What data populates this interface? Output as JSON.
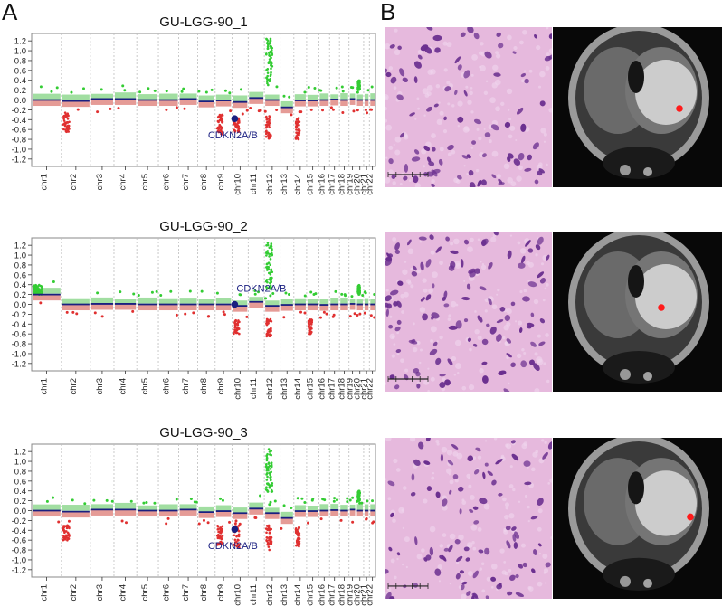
{
  "panel_labels": {
    "a": "A",
    "b": "B"
  },
  "colors": {
    "gain": "#90d890",
    "gain_dot": "#33cc33",
    "loss": "#e08a84",
    "loss_dot": "#e03030",
    "segment": "#1a1f80",
    "gene": "#1a1f80",
    "baseline_band": "#c8c8c8",
    "mri_lesion": "#ff1a1a",
    "he_pink": "#e6b9dd",
    "he_nucleus": "#6a2f8f"
  },
  "chart_data": [
    {
      "type": "scatter",
      "title": "GU-LGG-90_1",
      "xlabel": "",
      "ylabel": "",
      "ylim": [
        -1.35,
        1.35
      ],
      "yticks": [
        1.2,
        1.0,
        0.8,
        0.6,
        0.4,
        0.2,
        0.0,
        -0.2,
        -0.4,
        -0.6,
        -0.8,
        -1.0,
        -1.2
      ],
      "yticklabels": [
        "1.2",
        "1.0",
        "0.8",
        "0.6",
        "0.4",
        "0.2",
        "0.0",
        "-0.2",
        "-0.4",
        "-0.6",
        "-0.8",
        "-1.0",
        "-1.2"
      ],
      "categories": [
        "chr1",
        "chr2",
        "chr3",
        "chr4",
        "chr5",
        "chr6",
        "chr7",
        "chr8",
        "chr9",
        "chr10",
        "chr11",
        "chr12",
        "chr13",
        "chr14",
        "chr15",
        "chr16",
        "chr17",
        "chr18",
        "chr19",
        "chr20",
        "chr21",
        "chr22"
      ],
      "segments": [
        0,
        -0.02,
        0.02,
        0.02,
        0.0,
        0.0,
        0.02,
        -0.03,
        -0.01,
        -0.04,
        0.04,
        0.0,
        -0.15,
        -0.01,
        -0.01,
        0.0,
        0.01,
        0.0,
        0.02,
        0.0,
        0.0,
        0.0
      ],
      "gains": [
        {
          "chr": 11,
          "ylow": 0.3,
          "yhigh": 1.25
        },
        {
          "chr": 19,
          "ylow": 0.2,
          "yhigh": 0.4
        }
      ],
      "losses": [
        {
          "chr": 1,
          "ylow": -0.65,
          "yhigh": -0.25
        },
        {
          "chr": 8,
          "ylow": -0.7,
          "yhigh": -0.3
        },
        {
          "chr": 9,
          "ylow": -0.65,
          "yhigh": -0.35
        },
        {
          "chr": 11,
          "ylow": -0.8,
          "yhigh": -0.3
        },
        {
          "chr": 13,
          "ylow": -0.8,
          "yhigh": -0.35
        }
      ],
      "annotation": {
        "label": "CDKN2A/B",
        "chr": 8,
        "y": -0.38
      }
    },
    {
      "type": "scatter",
      "title": "GU-LGG-90_2",
      "xlabel": "",
      "ylabel": "",
      "ylim": [
        -1.35,
        1.35
      ],
      "yticks": [
        1.2,
        1.0,
        0.8,
        0.6,
        0.4,
        0.2,
        0.0,
        -0.2,
        -0.4,
        -0.6,
        -0.8,
        -1.0,
        -1.2
      ],
      "yticklabels": [
        "1.2",
        "1.0",
        "0.8",
        "0.6",
        "0.4",
        "0.2",
        "0.0",
        "-0.2",
        "-0.4",
        "-0.6",
        "-0.8",
        "-1.0",
        "-1.2"
      ],
      "categories": [
        "chr1",
        "chr2",
        "chr3",
        "chr4",
        "chr5",
        "chr6",
        "chr7",
        "chr8",
        "chr9",
        "chr10",
        "chr11",
        "chr12",
        "chr13",
        "chr14",
        "chr15",
        "chr16",
        "chr17",
        "chr18",
        "chr19",
        "chr20",
        "chr21",
        "chr22"
      ],
      "segments": [
        0.2,
        0.0,
        0.01,
        0.01,
        0.0,
        0.0,
        0.0,
        0.0,
        0.0,
        -0.03,
        0.05,
        -0.03,
        -0.01,
        0.0,
        0.0,
        -0.01,
        0.0,
        0.0,
        0.01,
        0.0,
        0.0,
        0.0
      ],
      "gains": [
        {
          "chr": 0,
          "ylow": 0.2,
          "yhigh": 0.4
        },
        {
          "chr": 11,
          "ylow": 0.3,
          "yhigh": 1.25
        },
        {
          "chr": 19,
          "ylow": 0.2,
          "yhigh": 0.4
        }
      ],
      "losses": [
        {
          "chr": 9,
          "ylow": -0.6,
          "yhigh": -0.3
        },
        {
          "chr": 11,
          "ylow": -0.65,
          "yhigh": -0.3
        },
        {
          "chr": 14,
          "ylow": -0.6,
          "yhigh": -0.3
        }
      ],
      "annotation": {
        "label": "CDKN2A/B",
        "chr": 8,
        "y": 0.0
      }
    },
    {
      "type": "scatter",
      "title": "GU-LGG-90_3",
      "xlabel": "",
      "ylabel": "",
      "ylim": [
        -1.35,
        1.35
      ],
      "yticks": [
        1.2,
        1.0,
        0.8,
        0.6,
        0.4,
        0.2,
        0.0,
        -0.2,
        -0.4,
        -0.6,
        -0.8,
        -1.0,
        -1.2
      ],
      "yticklabels": [
        "1.2",
        "1.0",
        "0.8",
        "0.6",
        "0.4",
        "0.2",
        "0.0",
        "-0.2",
        "-0.4",
        "-0.6",
        "-0.8",
        "-1.0",
        "-1.2"
      ],
      "categories": [
        "chr1",
        "chr2",
        "chr3",
        "chr4",
        "chr5",
        "chr6",
        "chr7",
        "chr8",
        "chr9",
        "chr10",
        "chr11",
        "chr12",
        "chr13",
        "chr14",
        "chr15",
        "chr16",
        "chr17",
        "chr18",
        "chr19",
        "chr20",
        "chr21",
        "chr22"
      ],
      "segments": [
        0.0,
        -0.02,
        0.02,
        0.02,
        0.0,
        0.0,
        0.02,
        -0.03,
        -0.01,
        -0.05,
        0.04,
        -0.05,
        -0.15,
        -0.01,
        -0.01,
        0.0,
        0.01,
        0.0,
        0.02,
        0.0,
        0.0,
        0.0
      ],
      "gains": [
        {
          "chr": 11,
          "ylow": 0.3,
          "yhigh": 1.25
        },
        {
          "chr": 19,
          "ylow": 0.2,
          "yhigh": 0.4
        }
      ],
      "losses": [
        {
          "chr": 1,
          "ylow": -0.62,
          "yhigh": -0.3
        },
        {
          "chr": 8,
          "ylow": -0.7,
          "yhigh": -0.3
        },
        {
          "chr": 9,
          "ylow": -0.75,
          "yhigh": -0.3
        },
        {
          "chr": 11,
          "ylow": -0.8,
          "yhigh": -0.3
        },
        {
          "chr": 13,
          "ylow": -0.75,
          "yhigh": -0.3
        }
      ],
      "annotation": {
        "label": "CDKN2A/B",
        "chr": 8,
        "y": -0.38
      }
    }
  ]
}
